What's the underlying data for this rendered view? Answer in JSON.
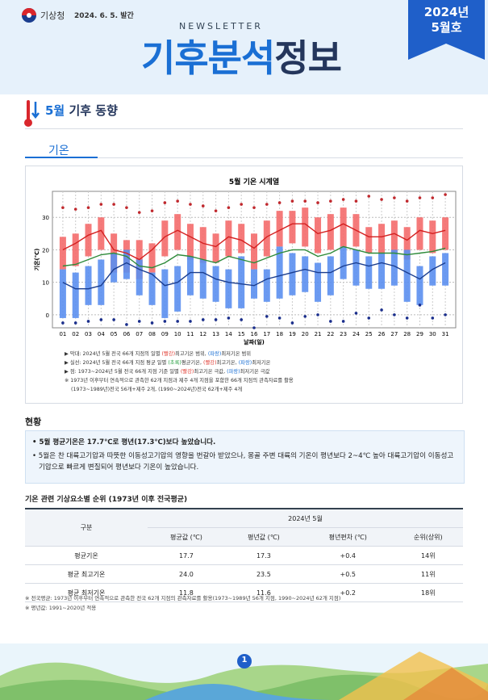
{
  "header": {
    "org": "기상청",
    "date": "2024. 6. 5. 발간",
    "newsletter": "NEWSLETTER",
    "title_a": "기후분석",
    "title_b": "정보",
    "badge_year": "2024년",
    "badge_month": "5월호"
  },
  "section": {
    "month": "5월",
    "title": "기후 동향"
  },
  "tab": "기온",
  "chart_data": {
    "type": "range_bar_line",
    "title": "5월 기온 시계열",
    "x_label": "날짜(일)",
    "y_label": "기온(℃)",
    "categories": [
      "01",
      "02",
      "03",
      "04",
      "05",
      "06",
      "07",
      "08",
      "09",
      "10",
      "11",
      "12",
      "13",
      "14",
      "15",
      "16",
      "17",
      "18",
      "19",
      "20",
      "21",
      "22",
      "23",
      "24",
      "25",
      "26",
      "27",
      "28",
      "29",
      "30",
      "31"
    ],
    "ylim": [
      -4,
      38
    ],
    "yticks": [
      0,
      10,
      20,
      30
    ],
    "grid": true,
    "max_range": {
      "color": "#f46b6b",
      "low": [
        14,
        15,
        18,
        20,
        13,
        13,
        11,
        13,
        18,
        20,
        17,
        16,
        16,
        18,
        19,
        14,
        18,
        21,
        22,
        21,
        19,
        20,
        21,
        21,
        19,
        19,
        19,
        17,
        20,
        19,
        20
      ],
      "high": [
        24,
        25,
        28,
        30,
        25,
        23,
        23,
        22,
        29,
        31,
        28,
        27,
        25,
        29,
        28,
        25,
        29,
        32,
        32,
        33,
        30,
        31,
        33,
        31,
        27,
        28,
        29,
        27,
        30,
        29,
        30
      ]
    },
    "min_range": {
      "color": "#5b8ff0",
      "low": [
        -1,
        -1,
        3,
        3,
        10,
        11,
        6,
        3,
        -1,
        1,
        6,
        5,
        4,
        2,
        2,
        5,
        4,
        5,
        6,
        7,
        4,
        6,
        11,
        9,
        8,
        8,
        9,
        4,
        3,
        9,
        9
      ],
      "high": [
        14,
        13,
        15,
        17,
        19,
        20,
        17,
        13,
        14,
        15,
        18,
        17,
        15,
        14,
        18,
        14,
        14,
        21,
        19,
        18,
        16,
        18,
        21,
        20,
        18,
        19,
        20,
        20,
        15,
        18,
        19
      ]
    },
    "lines": [
      {
        "color": "#d42020",
        "values": [
          20,
          22,
          24.5,
          26,
          20,
          19,
          17,
          20,
          24,
          26,
          24,
          22,
          21,
          24,
          23,
          20.5,
          24,
          26,
          28,
          28,
          25,
          26,
          28,
          26,
          24,
          24,
          25,
          23,
          26,
          25,
          26
        ]
      },
      {
        "color": "#2e8b3a",
        "values": [
          15,
          15.5,
          17,
          18.5,
          19,
          18,
          15,
          14.5,
          16,
          18.5,
          18,
          17,
          16,
          18,
          17,
          16,
          17.5,
          19,
          20,
          20,
          18,
          19,
          21,
          20,
          19,
          19,
          19,
          18.5,
          19,
          19.5,
          20.5
        ]
      },
      {
        "color": "#1a3d8f",
        "values": [
          10,
          8,
          8,
          9,
          14,
          16,
          14,
          12.5,
          9,
          10,
          13,
          13,
          11,
          10,
          9.5,
          9,
          11,
          12,
          13,
          14,
          13,
          13,
          15,
          16,
          15,
          16,
          15,
          13,
          11,
          14,
          16
        ]
      }
    ],
    "records": [
      {
        "color": "#c0282d",
        "values": [
          33,
          32.5,
          33,
          34,
          34,
          33,
          31.5,
          32,
          34.5,
          35,
          34,
          33.5,
          32,
          33,
          34,
          33,
          34,
          34.5,
          35,
          35,
          34.5,
          35,
          35.5,
          35,
          36.5,
          35.5,
          36,
          35,
          36,
          36,
          37
        ]
      },
      {
        "color": "#1a2e8c",
        "values": [
          -2.5,
          -2.5,
          -2,
          -1.5,
          -1.5,
          -3,
          -2,
          -2.5,
          -2,
          -2,
          -2,
          -1.5,
          -1.5,
          -1,
          -1.5,
          -4,
          -0.5,
          -1,
          -2.5,
          -0.5,
          0,
          -2,
          -2,
          0.5,
          -1,
          1.5,
          0,
          -1,
          3,
          -1,
          0
        ]
      }
    ]
  },
  "notes": [
    [
      "▶ 막대: 2024년 5월 전국 66개 지점의 일별 ",
      "(빨강)",
      "최고기온 범위, ",
      "(파랑)",
      "최저기온 범위"
    ],
    [
      "▶ 실선: 2024년 5월 전국 66개 지점 평균 일별 ",
      "(초록)",
      "평균기온, ",
      "(빨강)",
      "최고기온, ",
      "(파랑)",
      "최저기온"
    ],
    [
      "▶ 점: 1973~2024년 5월 전국 66개 지점 기준 일별 ",
      "(빨강)",
      "최고기온 극값, ",
      "(파랑)",
      "최저기온 극값"
    ],
    [
      "※ 1973년 이후부터 연속적으로 관측한 62개 지점과 제주 4개 지점을 포함한 66개 지점의 관측자료를 활용"
    ],
    [
      "(1973~1989년)전국 56개+제주 2개, (1990~2024년)전국 62개+제주 4개"
    ]
  ],
  "status": {
    "heading": "현황",
    "bullets": [
      "• 5월 평균기온은 17.7℃로 평년(17.3℃)보다 높았습니다.",
      "• 5월은 찬 대륙고기압과 따뜻한 이동성고기압의 영향을 번갈아 받았으나, 몽골 주변 대륙의 기온이 평년보다 2~4℃ 높아 대륙고기압이 이동성고기압으로 빠르게 변질되어 평년보다 기온이 높았습니다."
    ]
  },
  "table": {
    "title": "기온 관련 기상요소별 순위 (1973년 이후 전국평균)",
    "corner": "구분",
    "group": "2024년 5월",
    "columns": [
      "평균값 (℃)",
      "평년값 (℃)",
      "평년편차 (℃)",
      "순위(상위)"
    ],
    "rows": [
      [
        "평균기온",
        "17.7",
        "17.3",
        "+0.4",
        "14위"
      ],
      [
        "평균 최고기온",
        "24.0",
        "23.5",
        "+0.5",
        "11위"
      ],
      [
        "평균 최저기온",
        "11.8",
        "11.6",
        "+0.2",
        "18위"
      ]
    ]
  },
  "footnotes": [
    "※ 전국평균: 1973년 이후부터 연속적으로 관측한 전국 62개 지점의 관측자료를 활용(1973~1989년 56개 지점, 1990~2024년 62개 지점)",
    "※ 평년값: 1991~2020년 적용"
  ],
  "page_number": "1"
}
